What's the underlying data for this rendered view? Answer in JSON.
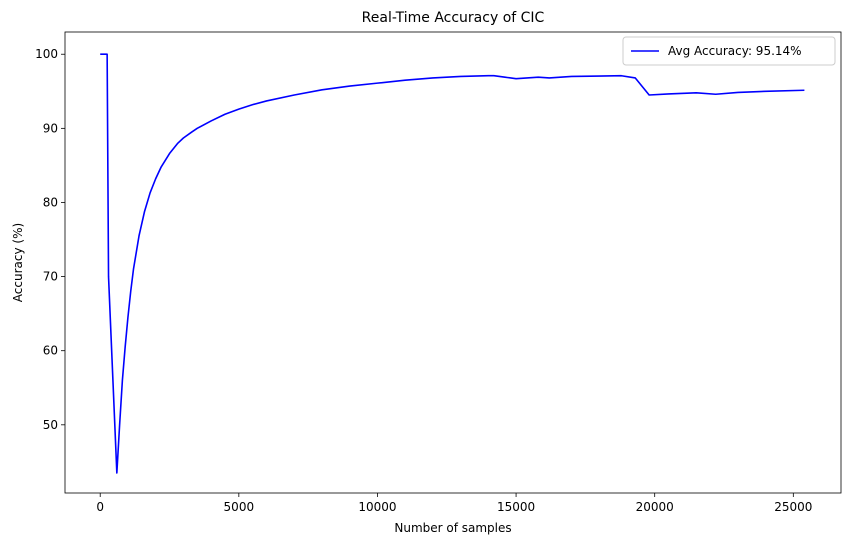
{
  "chart_data": {
    "type": "line",
    "title": "Real-Time Accuracy of CIC",
    "xlabel": "Number of samples",
    "ylabel": "Accuracy (%)",
    "xlim": [
      -1270,
      26720
    ],
    "ylim": [
      40.8,
      103
    ],
    "xticks": [
      0,
      5000,
      10000,
      15000,
      20000,
      25000
    ],
    "yticks": [
      50,
      60,
      70,
      80,
      90,
      100
    ],
    "grid": false,
    "legend_position": "top-right",
    "colors": {
      "line": "#0000ff"
    },
    "series": [
      {
        "name": "Avg Accuracy: 95.14%",
        "x": [
          0,
          250,
          300,
          600,
          700,
          800,
          900,
          1000,
          1100,
          1200,
          1400,
          1600,
          1800,
          2000,
          2200,
          2500,
          2800,
          3000,
          3300,
          3500,
          4000,
          4500,
          5000,
          5500,
          6000,
          7000,
          8000,
          9000,
          10000,
          11000,
          12000,
          13000,
          14000,
          14200,
          14600,
          15000,
          15800,
          16200,
          17000,
          18000,
          18800,
          19300,
          19800,
          20500,
          21500,
          22200,
          23000,
          24000,
          25400
        ],
        "y": [
          100,
          100,
          70,
          43.5,
          50,
          56,
          60.5,
          64.5,
          68,
          71,
          75.5,
          78.8,
          81.3,
          83.2,
          84.8,
          86.6,
          88,
          88.7,
          89.5,
          90,
          91,
          91.9,
          92.6,
          93.2,
          93.7,
          94.5,
          95.2,
          95.7,
          96.1,
          96.5,
          96.8,
          97,
          97.1,
          97.1,
          96.9,
          96.7,
          96.9,
          96.8,
          97,
          97.05,
          97.1,
          96.8,
          94.5,
          94.65,
          94.8,
          94.6,
          94.85,
          95,
          95.14
        ]
      }
    ]
  }
}
